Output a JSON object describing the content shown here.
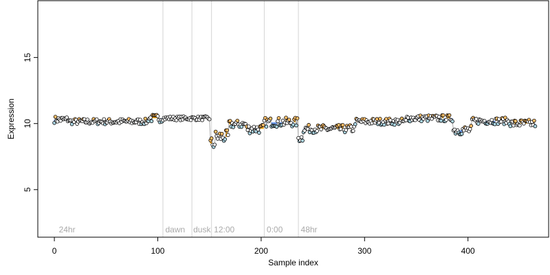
{
  "chart_data": {
    "type": "scatter",
    "xlabel": "Sample index",
    "ylabel": "Expression",
    "xlim": [
      -16,
      478
    ],
    "ylim": [
      1.4,
      19.3
    ],
    "x_ticks": [
      0,
      100,
      200,
      300,
      400
    ],
    "y_ticks": [
      5,
      10,
      15
    ],
    "grid": false,
    "phase_lines": [
      105,
      133,
      152,
      203,
      236
    ],
    "phase_labels": [
      {
        "x": 3,
        "text": "24hr"
      },
      {
        "x": 106,
        "text": "dawn"
      },
      {
        "x": 133,
        "text": "dusk"
      },
      {
        "x": 153,
        "text": "12:00"
      },
      {
        "x": 204,
        "text": "0:00"
      },
      {
        "x": 237,
        "text": "48hr"
      }
    ],
    "colors": {
      "axis": "#000000",
      "phase_line": "#d3d3d3",
      "phase_label": "#a9a9a9",
      "trace": "#a9a9a9",
      "point_default": "#ffffff",
      "point_blue": "#add8e6",
      "point_orange": "#ffc06a",
      "bar_orange": "#ffa500",
      "bar_blue": "#6495ed"
    },
    "segments": [
      [
        0,
        14,
        10.3,
        0.25
      ],
      [
        15,
        90,
        10.15,
        0.22
      ],
      [
        91,
        104,
        10.4,
        0.3
      ],
      [
        105,
        150,
        10.4,
        0.15
      ],
      [
        151,
        155,
        8.5,
        0.5
      ],
      [
        156,
        168,
        9.0,
        0.5
      ],
      [
        169,
        185,
        9.95,
        0.3
      ],
      [
        186,
        202,
        9.6,
        0.35
      ],
      [
        203,
        235,
        10.1,
        0.35
      ],
      [
        236,
        240,
        8.9,
        0.3
      ],
      [
        241,
        290,
        9.6,
        0.3
      ],
      [
        291,
        340,
        10.15,
        0.25
      ],
      [
        341,
        385,
        10.4,
        0.25
      ],
      [
        386,
        403,
        9.5,
        0.35
      ],
      [
        404,
        440,
        10.2,
        0.25
      ],
      [
        441,
        465,
        10.0,
        0.3
      ]
    ]
  }
}
